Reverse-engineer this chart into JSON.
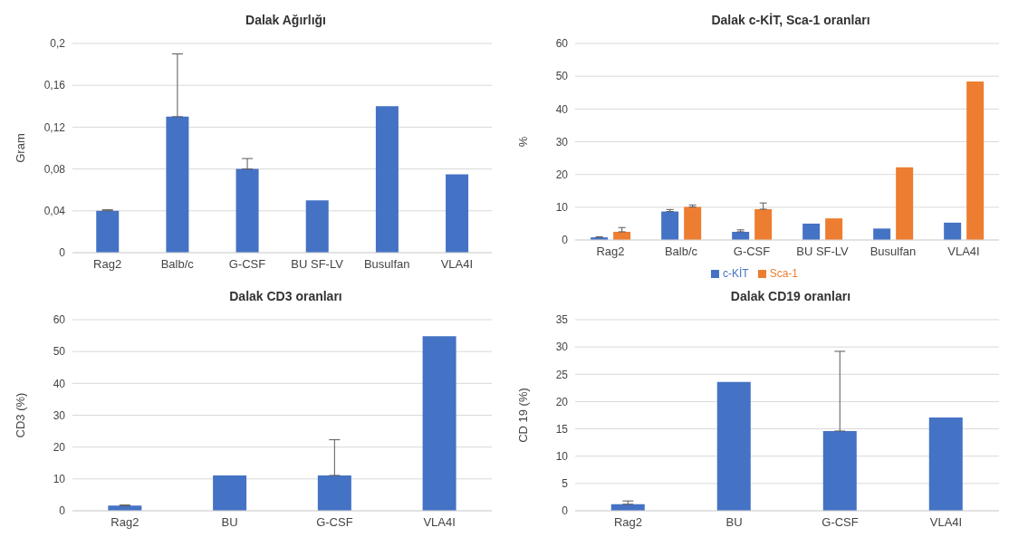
{
  "chart_data": [
    {
      "type": "bar",
      "title": "Dalak Ağırlığı",
      "ylabel": "Gram",
      "categories": [
        "Rag2",
        "Balb/c",
        "G-CSF",
        "BU SF-LV",
        "Busulfan",
        "VLA4I"
      ],
      "series": [
        {
          "color": "#4472c4",
          "values": [
            0.04,
            0.13,
            0.08,
            0.05,
            0.14,
            0.075
          ],
          "errors": [
            [
              0.04,
              0.041
            ],
            [
              0.13,
              0.19
            ],
            [
              0.08,
              0.09
            ],
            null,
            null,
            null
          ]
        }
      ],
      "ylim": [
        0,
        0.2
      ],
      "yticks": [
        0,
        {
          "value": 0.04,
          "label": "0,04"
        },
        {
          "value": 0.08,
          "label": "0,08"
        },
        {
          "value": 0.12,
          "label": "0,12"
        },
        {
          "value": 0.16,
          "label": "0,16"
        },
        {
          "value": 0.2,
          "label": "0,2"
        }
      ],
      "grid": "y",
      "legend": false
    },
    {
      "type": "bar",
      "title": "Dalak c-KİT, Sca-1 oranları",
      "ylabel": "%",
      "categories": [
        "Rag2",
        "Balb/c",
        "G-CSF",
        "BU SF-LV",
        "Busulfan",
        "VLA4I"
      ],
      "series": [
        {
          "name": "c-KİT",
          "color": "#4472c4",
          "values": [
            0.8,
            8.7,
            2.5,
            5.0,
            3.5,
            5.3
          ],
          "errors": [
            [
              0.8,
              1.0
            ],
            [
              8.7,
              9.3
            ],
            [
              2.5,
              3.1
            ],
            null,
            null,
            null
          ]
        },
        {
          "name": "Sca-1",
          "color": "#ed7d31",
          "values": [
            2.5,
            10.1,
            9.4,
            6.6,
            22.2,
            48.4
          ],
          "errors": [
            [
              2.5,
              3.8
            ],
            [
              10.1,
              10.7
            ],
            [
              9.4,
              11.3
            ],
            null,
            null,
            null
          ]
        }
      ],
      "ylim": [
        0,
        60
      ],
      "yticks": [
        0,
        10,
        20,
        30,
        40,
        50,
        60
      ],
      "grid": "y",
      "legend": "bottom"
    },
    {
      "type": "bar",
      "title": "Dalak CD3 oranları",
      "ylabel": "CD3 (%)",
      "categories": [
        "Rag2",
        "BU",
        "G-CSF",
        "VLA4I"
      ],
      "series": [
        {
          "color": "#4472c4",
          "values": [
            1.6,
            11.1,
            11.1,
            54.8
          ],
          "errors": [
            [
              1.6,
              1.8
            ],
            null,
            [
              11.1,
              22.3
            ],
            null
          ]
        }
      ],
      "ylim": [
        0,
        60
      ],
      "yticks": [
        0,
        10,
        20,
        30,
        40,
        50,
        60
      ],
      "grid": "y",
      "legend": false
    },
    {
      "type": "bar",
      "title": "Dalak CD19 oranları",
      "ylabel": "CD 19 (%)",
      "categories": [
        "Rag2",
        "BU",
        "G-CSF",
        "VLA4I"
      ],
      "series": [
        {
          "color": "#4472c4",
          "values": [
            1.2,
            23.6,
            14.6,
            17.1
          ],
          "errors": [
            [
              1.2,
              1.8
            ],
            null,
            [
              14.6,
              29.2
            ],
            null
          ]
        }
      ],
      "ylim": [
        0,
        35
      ],
      "yticks": [
        0,
        5,
        10,
        15,
        20,
        25,
        30,
        35
      ],
      "grid": "y",
      "legend": false
    }
  ]
}
